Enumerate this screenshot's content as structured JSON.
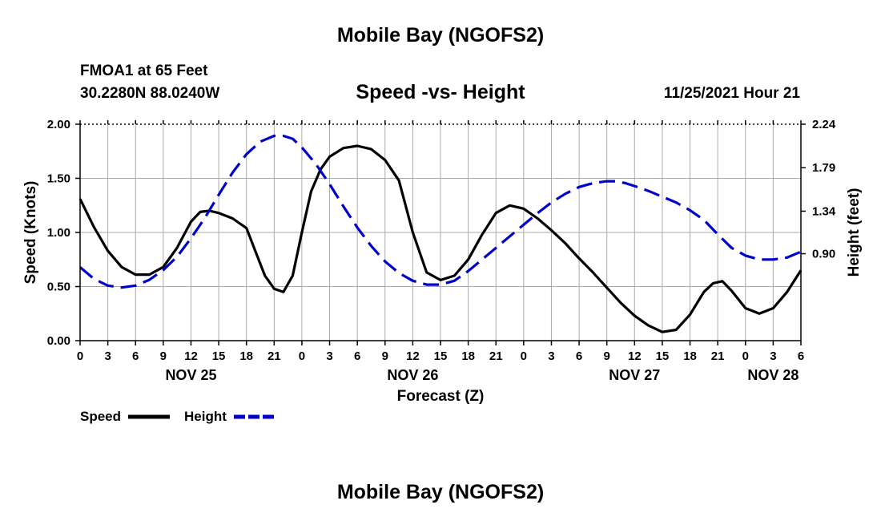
{
  "header": {
    "title": "Mobile Bay (NGOFS2)",
    "station": "FMOA1 at 65 Feet",
    "coordinates": "30.2280N  88.0240W",
    "subtitle": "Speed -vs- Height",
    "datetime": "11/25/2021 Hour 21"
  },
  "footer": {
    "title": "Mobile Bay (NGOFS2)"
  },
  "colors": {
    "speed": "#000000",
    "height": "#0000cc",
    "grid": "#aaaaaa"
  },
  "chart_data": {
    "type": "line",
    "title": "Speed -vs- Height",
    "xlabel": "Forecast (Z)",
    "ylabel": "Speed (Knots)",
    "y2label": "Height (feet)",
    "xlim": [
      0,
      78
    ],
    "ylim": [
      0,
      2.0
    ],
    "y2lim": [
      0,
      2.24
    ],
    "x_tick_labels": [
      "0",
      "3",
      "6",
      "9",
      "12",
      "15",
      "18",
      "21",
      "0",
      "3",
      "6",
      "9",
      "12",
      "15",
      "18",
      "21",
      "0",
      "3",
      "6",
      "9",
      "12",
      "15",
      "18",
      "21",
      "0",
      "3",
      "6"
    ],
    "y_ticks": [
      "0.00",
      "0.50",
      "1.00",
      "1.50",
      "2.00"
    ],
    "y2_ticks": [
      {
        "value": 0.9,
        "label": "0.90"
      },
      {
        "value": 1.34,
        "label": "1.34"
      },
      {
        "value": 1.79,
        "label": "1.79"
      },
      {
        "value": 2.24,
        "label": "2.24"
      }
    ],
    "date_labels": [
      {
        "label": "NOV 25",
        "x": 12
      },
      {
        "label": "NOV 26",
        "x": 36
      },
      {
        "label": "NOV 27",
        "x": 60
      },
      {
        "label": "NOV 28",
        "x": 75
      }
    ],
    "grid": true,
    "legend": [
      {
        "name": "Speed",
        "style": "solid"
      },
      {
        "name": "Height",
        "style": "dashed"
      }
    ],
    "series": [
      {
        "name": "Speed",
        "axis": "left",
        "x": [
          0,
          1.5,
          3,
          4.5,
          6,
          7.5,
          9,
          10.5,
          12,
          13,
          14,
          15,
          16.5,
          18,
          19,
          20,
          21,
          22,
          23,
          24,
          25,
          26,
          27,
          28.5,
          30,
          31.5,
          33,
          34.5,
          36,
          37.5,
          39,
          40.5,
          42,
          43.5,
          45,
          46.5,
          48,
          49.5,
          51,
          52.5,
          54,
          55.5,
          57,
          58.5,
          60,
          61.5,
          63,
          64.5,
          66,
          67.5,
          68.5,
          69.5,
          70.5,
          72,
          73.5,
          75,
          76.5,
          78
        ],
        "values": [
          1.31,
          1.05,
          0.83,
          0.68,
          0.61,
          0.61,
          0.68,
          0.86,
          1.1,
          1.19,
          1.2,
          1.18,
          1.13,
          1.04,
          0.82,
          0.6,
          0.48,
          0.45,
          0.6,
          1.0,
          1.38,
          1.58,
          1.7,
          1.78,
          1.8,
          1.77,
          1.67,
          1.48,
          1.0,
          0.63,
          0.56,
          0.6,
          0.75,
          0.98,
          1.18,
          1.25,
          1.22,
          1.13,
          1.02,
          0.9,
          0.76,
          0.63,
          0.49,
          0.35,
          0.23,
          0.14,
          0.08,
          0.1,
          0.24,
          0.45,
          0.53,
          0.55,
          0.46,
          0.3,
          0.25,
          0.3,
          0.45,
          0.65
        ]
      },
      {
        "name": "Height",
        "axis": "right",
        "x": [
          0,
          1.5,
          3,
          4.5,
          6,
          7.5,
          9,
          10.5,
          12,
          13.5,
          15,
          16.5,
          18,
          19.5,
          21,
          22,
          23,
          24,
          25.5,
          27,
          28.5,
          30,
          31.5,
          33,
          34.5,
          36,
          37.5,
          39,
          40.5,
          42,
          43.5,
          45,
          46.5,
          48,
          49.5,
          51,
          52.5,
          54,
          55.5,
          57,
          58,
          59,
          60,
          61.5,
          63,
          64.5,
          66,
          67.5,
          69,
          70.5,
          72,
          73.5,
          75,
          76.5,
          78
        ],
        "values": [
          0.76,
          0.64,
          0.57,
          0.55,
          0.57,
          0.63,
          0.73,
          0.87,
          1.06,
          1.27,
          1.51,
          1.74,
          1.93,
          2.06,
          2.12,
          2.12,
          2.09,
          2.0,
          1.83,
          1.62,
          1.39,
          1.17,
          0.98,
          0.82,
          0.7,
          0.62,
          0.58,
          0.58,
          0.62,
          0.72,
          0.84,
          0.96,
          1.08,
          1.2,
          1.32,
          1.43,
          1.52,
          1.59,
          1.63,
          1.65,
          1.65,
          1.63,
          1.6,
          1.55,
          1.49,
          1.43,
          1.35,
          1.25,
          1.1,
          0.96,
          0.88,
          0.84,
          0.84,
          0.86,
          0.92
        ]
      }
    ]
  }
}
